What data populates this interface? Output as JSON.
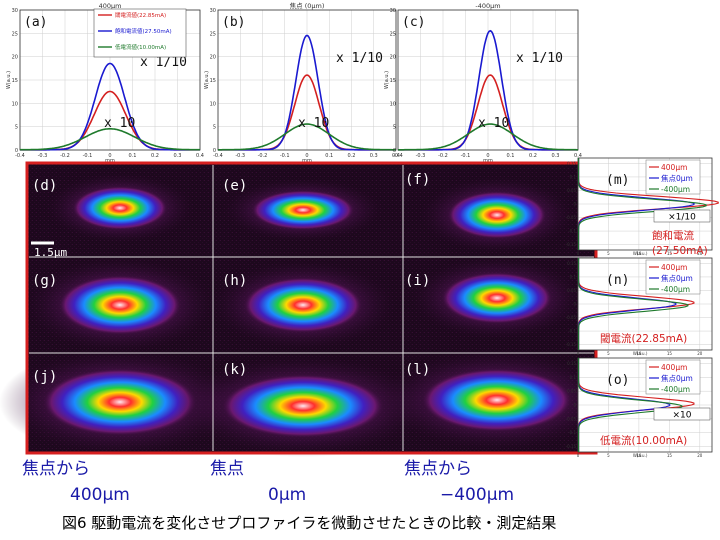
{
  "top_charts": [
    {
      "label": "(a)",
      "title": "400μm",
      "scale_top": "x 1/10",
      "scale_bottom": "x 10"
    },
    {
      "label": "(b)",
      "title": "焦点 (0μm)",
      "scale_top": "x 1/10",
      "scale_bottom": "x 10"
    },
    {
      "label": "(c)",
      "title": "-400μm",
      "scale_top": "x 1/10",
      "scale_bottom": "x 10"
    }
  ],
  "top_legend": [
    "閾電流値(22.85mA)",
    "飽和電流値(27.50mA)",
    "低電流値(10.00mA)"
  ],
  "top_y_ticks": [
    "0",
    "5",
    "10",
    "15",
    "20",
    "25",
    "30"
  ],
  "top_x_ticks": [
    "-0.4",
    "-0.3",
    "-0.2",
    "-0.1",
    "0",
    "0.1",
    "0.2",
    "0.3",
    "0.4"
  ],
  "top_y_label": "W(a.u.)",
  "top_x_label": "mm",
  "image_labels": [
    "(d)",
    "(e)",
    "(f)",
    "(g)",
    "(h)",
    "(i)",
    "(j)",
    "(k)",
    "(l)"
  ],
  "scale_bar_label": "1.5μm",
  "right_legend": [
    "400μm",
    "焦点0μm",
    "-400μm"
  ],
  "right_labels": [
    {
      "label": "(m)",
      "scale": "×1/10",
      "current_line1": "飽和電流",
      "current_line2": "(27.50mA)"
    },
    {
      "label": "(n)",
      "scale": "",
      "current_line1": "閾電流(22.85mA)",
      "current_line2": ""
    },
    {
      "label": "(o)",
      "scale": "×10",
      "current_line1": "低電流(10.00mA)",
      "current_line2": ""
    }
  ],
  "right_y_ticks": [
    "0.15",
    "0.1",
    "0.05",
    "0",
    "-0.05",
    "-0.1",
    "-0.15"
  ],
  "right_x_ticks": [
    "0",
    "5",
    "10",
    "15",
    "20"
  ],
  "right_x_label": "W(a.u.)",
  "bottom_labels": [
    {
      "line1": "焦点から",
      "line2": "400μm"
    },
    {
      "line1": "焦点",
      "line2": "0μm"
    },
    {
      "line1": "焦点から",
      "line2": "−400μm"
    }
  ],
  "caption": "図6  駆動電流を変化させプロファイラを微動させたときの比較・測定結果",
  "colors": {
    "red": "#d42020",
    "blue": "#1a1ad0",
    "green": "#1f7a2c",
    "frame": "#d62020",
    "bottom_text": "#1a1aa8"
  },
  "chart_data": {
    "type": "line",
    "title": "",
    "xlabel": "mm",
    "ylabel": "W(a.u.)",
    "xlim": [
      -0.4,
      0.4
    ],
    "ylim": [
      0,
      30
    ],
    "panels": [
      {
        "name": "(a) 400μm",
        "series": [
          {
            "name": "閾電流値(22.85mA)",
            "peak": 12.5,
            "center": 0.0,
            "width": 0.07
          },
          {
            "name": "飽和電流値(27.50mA)",
            "peak": 18.5,
            "center": 0.0,
            "width": 0.065
          },
          {
            "name": "低電流値(10.00mA)",
            "peak": 4.5,
            "center": 0.0,
            "width": 0.11
          }
        ]
      },
      {
        "name": "(b) 焦点 (0μm)",
        "series": [
          {
            "name": "閾電流値(22.85mA)",
            "peak": 16.0,
            "center": 0.0,
            "width": 0.055
          },
          {
            "name": "飽和電流値(27.50mA)",
            "peak": 24.5,
            "center": 0.0,
            "width": 0.05
          },
          {
            "name": "低電流値(10.00mA)",
            "peak": 5.5,
            "center": 0.0,
            "width": 0.1
          }
        ]
      },
      {
        "name": "(c) -400μm",
        "series": [
          {
            "name": "閾電流値(22.85mA)",
            "peak": 16.0,
            "center": 0.01,
            "width": 0.055
          },
          {
            "name": "飽和電流値(27.50mA)",
            "peak": 25.5,
            "center": 0.01,
            "width": 0.05
          },
          {
            "name": "低電流値(10.00mA)",
            "peak": 5.5,
            "center": 0.01,
            "width": 0.1
          }
        ]
      }
    ]
  }
}
